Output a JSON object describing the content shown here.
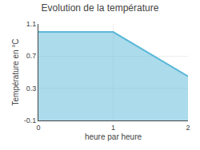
{
  "chart_data": {
    "type": "area",
    "title": "Evolution de la température",
    "xlabel": "heure par heure",
    "ylabel": "Température en °C",
    "x": [
      0,
      1,
      2
    ],
    "values": [
      1.0,
      1.0,
      0.45
    ],
    "color": "#5ab8d8",
    "xlim": [
      0,
      2
    ],
    "ylim": [
      -0.1,
      1.1
    ],
    "xticks": [
      0,
      1,
      2
    ],
    "yticks": [
      -0.1,
      0.3,
      0.7,
      1.1
    ],
    "grid": true
  }
}
